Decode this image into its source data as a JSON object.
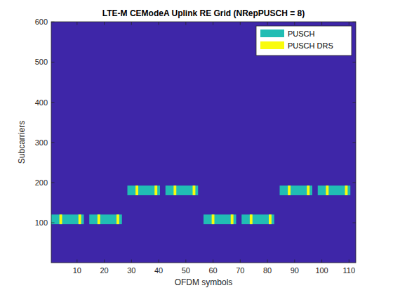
{
  "chart_data": {
    "type": "grid",
    "title": "LTE-M CEModeA Uplink RE Grid (NRepPUSCH = 8)",
    "x_label": "OFDM symbols",
    "y_label": "Subcarriers",
    "xlim": [
      0.5,
      112.5
    ],
    "ylim": [
      0.5,
      600.5
    ],
    "xticks": [
      10,
      20,
      30,
      40,
      50,
      60,
      70,
      80,
      90,
      100,
      110
    ],
    "yticks": [
      100,
      200,
      300,
      400,
      500,
      600
    ],
    "color": "#3e26a8",
    "legend": "northeast",
    "series": [
      {
        "name": "PUSCH",
        "color": "#21bdb4",
        "values": [
          [
            0.5,
            12.5,
            96.5,
            120.5
          ],
          [
            14.5,
            26.5,
            96.5,
            120.5
          ],
          [
            28.5,
            40.5,
            168.5,
            192.5
          ],
          [
            42.5,
            54.5,
            168.5,
            192.5
          ],
          [
            56.5,
            68.5,
            96.5,
            120.5
          ],
          [
            70.5,
            82.5,
            96.5,
            120.5
          ],
          [
            84.5,
            96.5,
            168.5,
            192.5
          ],
          [
            98.5,
            110.5,
            168.5,
            192.5
          ]
        ]
      },
      {
        "name": "PUSCH DRS",
        "color": "#f9fb0e",
        "values": [
          [
            3.5,
            4.5,
            96.5,
            120.5
          ],
          [
            10.5,
            11.5,
            96.5,
            120.5
          ],
          [
            17.5,
            18.5,
            96.5,
            120.5
          ],
          [
            24.5,
            25.5,
            96.5,
            120.5
          ],
          [
            31.5,
            32.5,
            168.5,
            192.5
          ],
          [
            38.5,
            39.5,
            168.5,
            192.5
          ],
          [
            45.5,
            46.5,
            168.5,
            192.5
          ],
          [
            52.5,
            53.5,
            168.5,
            192.5
          ],
          [
            59.5,
            60.5,
            96.5,
            120.5
          ],
          [
            66.5,
            67.5,
            96.5,
            120.5
          ],
          [
            73.5,
            74.5,
            96.5,
            120.5
          ],
          [
            80.5,
            81.5,
            96.5,
            120.5
          ],
          [
            87.5,
            88.5,
            168.5,
            192.5
          ],
          [
            94.5,
            95.5,
            168.5,
            192.5
          ],
          [
            101.5,
            102.5,
            168.5,
            192.5
          ],
          [
            108.5,
            109.5,
            168.5,
            192.5
          ]
        ]
      }
    ]
  }
}
